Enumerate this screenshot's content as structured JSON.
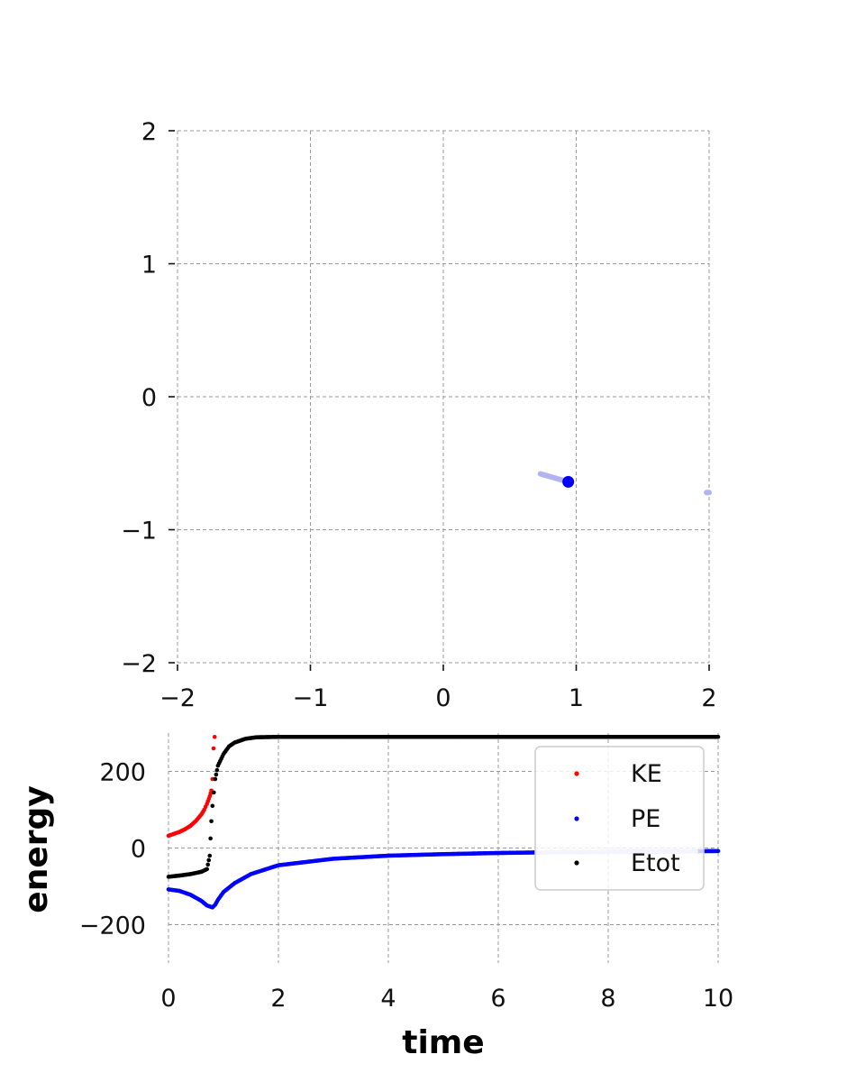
{
  "chart_data": [
    {
      "type": "scatter",
      "title": "",
      "xlabel": "",
      "ylabel": "",
      "xlim": [
        -2,
        2
      ],
      "ylim": [
        -2,
        2
      ],
      "xticks": [
        "−2",
        "−1",
        "0",
        "1",
        "2"
      ],
      "yticks": [
        "2",
        "1",
        "0",
        "−1",
        "−2"
      ],
      "xtick_values": [
        -2,
        -1,
        0,
        1,
        2
      ],
      "ytick_values": [
        2,
        1,
        0,
        -1,
        -2
      ],
      "grid": true,
      "colors": {
        "point": "#0000ff",
        "trail": "#b3b3f2",
        "grid": "#999999"
      },
      "series": [
        {
          "role": "body",
          "points": [
            [
              0.94,
              -0.64
            ]
          ]
        },
        {
          "role": "trail",
          "points": [
            [
              0.73,
              -0.58
            ],
            [
              0.94,
              -0.64
            ]
          ]
        },
        {
          "role": "trail",
          "points": [
            [
              1.98,
              -0.72
            ],
            [
              2.0,
              -0.72
            ]
          ]
        }
      ]
    },
    {
      "type": "scatter",
      "title": "",
      "xlabel": "time",
      "ylabel": "energy",
      "xlim": [
        0,
        10
      ],
      "ylim": [
        -300,
        300
      ],
      "xticks": [
        "0",
        "2",
        "4",
        "6",
        "8",
        "10"
      ],
      "yticks": [
        "200",
        "0",
        "−200"
      ],
      "xtick_values": [
        0,
        2,
        4,
        6,
        8,
        10
      ],
      "ytick_values": [
        200,
        0,
        -200
      ],
      "grid": true,
      "legend_position": "upper-right",
      "series": [
        {
          "name": "KE",
          "color": "#ff0000",
          "x": [
            0.0,
            0.1,
            0.2,
            0.3,
            0.4,
            0.5,
            0.6,
            0.65,
            0.7,
            0.75,
            0.78,
            0.8,
            0.82,
            0.84
          ],
          "y": [
            32,
            37,
            42,
            49,
            58,
            71,
            88,
            100,
            115,
            135,
            150,
            180,
            260,
            290
          ]
        },
        {
          "name": "PE",
          "color": "#0000ff",
          "x": [
            0.0,
            0.2,
            0.4,
            0.6,
            0.7,
            0.8,
            0.85,
            0.9,
            1.0,
            1.2,
            1.5,
            2.0,
            3.0,
            4.0,
            5.0,
            6.0,
            7.0,
            8.0,
            9.0,
            10.0
          ],
          "y": [
            -108,
            -112,
            -122,
            -138,
            -150,
            -155,
            -148,
            -135,
            -115,
            -92,
            -68,
            -45,
            -28,
            -20,
            -16,
            -13,
            -11,
            -10,
            -9,
            -8
          ]
        },
        {
          "name": "Etot",
          "color": "#000000",
          "x": [
            0.0,
            0.2,
            0.4,
            0.6,
            0.7,
            0.75,
            0.78,
            0.8,
            0.85,
            0.9,
            1.0,
            1.1,
            1.2,
            1.4,
            1.6,
            2.0,
            4.0,
            6.0,
            8.0,
            10.0
          ],
          "y": [
            -75,
            -72,
            -68,
            -62,
            -55,
            -20,
            70,
            110,
            180,
            215,
            245,
            265,
            275,
            285,
            289,
            290,
            290,
            290,
            290,
            290
          ]
        }
      ],
      "legend": [
        "KE",
        "PE",
        "Etot"
      ]
    }
  ]
}
